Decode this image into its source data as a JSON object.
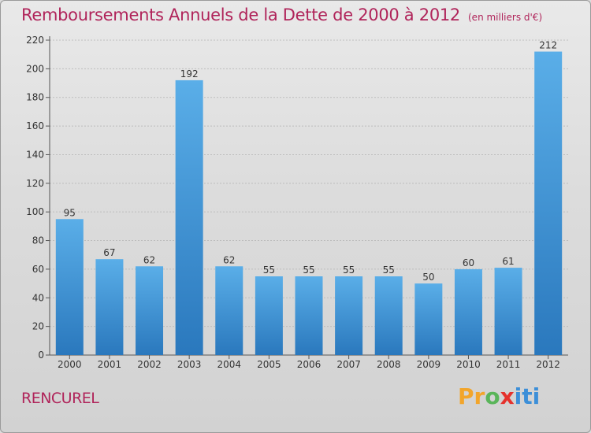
{
  "header": {
    "title": "Remboursements Annuels de la Dette de 2000 à 2012",
    "subtitle": "(en milliers d'€)"
  },
  "footer": {
    "town": "RENCUREL",
    "logo_text": "Proxiti",
    "logo_colors": [
      "#f2a52b",
      "#f2a52b",
      "#5ab55a",
      "#e5322d",
      "#3c8fd8",
      "#3c8fd8",
      "#3c8fd8"
    ]
  },
  "colors": {
    "bar_top": "#5aaee8",
    "bar_bottom": "#2a78bd",
    "title": "#b0245a",
    "grid": "#bdbdbd"
  },
  "chart_data": {
    "type": "bar",
    "title": "Remboursements Annuels de la Dette de 2000 à 2012",
    "subtitle": "(en milliers d'€)",
    "categories": [
      "2000",
      "2001",
      "2002",
      "2003",
      "2004",
      "2005",
      "2006",
      "2007",
      "2008",
      "2009",
      "2010",
      "2011",
      "2012"
    ],
    "values": [
      95,
      67,
      62,
      192,
      62,
      55,
      55,
      55,
      55,
      50,
      60,
      61,
      212
    ],
    "ylim": [
      0,
      220
    ],
    "yticks": [
      0,
      20,
      40,
      60,
      80,
      100,
      120,
      140,
      160,
      180,
      200,
      220
    ],
    "grid": true,
    "data_labels": true
  }
}
